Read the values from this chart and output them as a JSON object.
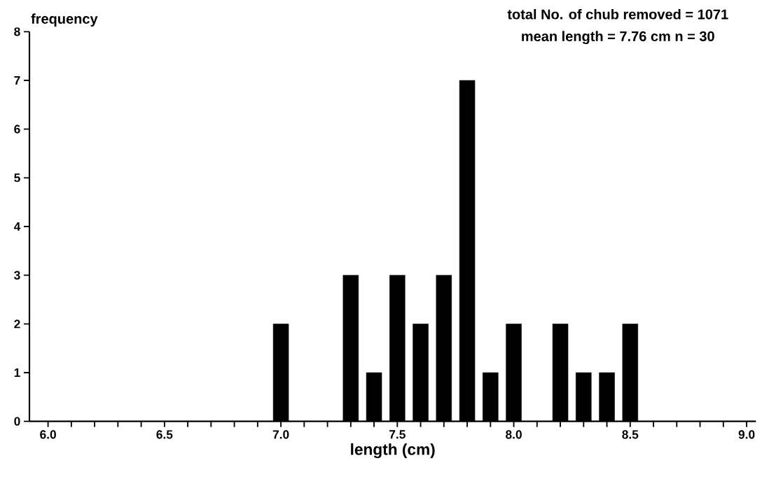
{
  "chart_data": {
    "type": "bar",
    "ylabel": "frequency",
    "xlabel": "length (cm)",
    "annotations": [
      "total No. of chub removed = 1071",
      "mean length = 7.76 cm    n = 30"
    ],
    "x": [
      7.0,
      7.3,
      7.4,
      7.5,
      7.6,
      7.7,
      7.8,
      7.9,
      8.0,
      8.2,
      8.3,
      8.4,
      8.5
    ],
    "values": [
      2,
      3,
      1,
      3,
      2,
      3,
      7,
      1,
      2,
      2,
      1,
      1,
      2
    ],
    "color": "#000000",
    "xlim": [
      5.92,
      9.04
    ],
    "ylim": [
      0,
      8
    ],
    "xticks": [
      {
        "value": 6.0,
        "label": "6.0"
      },
      {
        "value": 6.1,
        "label": null
      },
      {
        "value": 6.2,
        "label": null
      },
      {
        "value": 6.3,
        "label": null
      },
      {
        "value": 6.4,
        "label": null
      },
      {
        "value": 6.5,
        "label": "6.5"
      },
      {
        "value": 6.6,
        "label": null
      },
      {
        "value": 6.7,
        "label": null
      },
      {
        "value": 6.8,
        "label": null
      },
      {
        "value": 6.9,
        "label": null
      },
      {
        "value": 7.0,
        "label": "7.0"
      },
      {
        "value": 7.1,
        "label": null
      },
      {
        "value": 7.2,
        "label": null
      },
      {
        "value": 7.3,
        "label": null
      },
      {
        "value": 7.4,
        "label": null
      },
      {
        "value": 7.5,
        "label": "7.5"
      },
      {
        "value": 7.6,
        "label": null
      },
      {
        "value": 7.7,
        "label": null
      },
      {
        "value": 7.8,
        "label": null
      },
      {
        "value": 7.9,
        "label": null
      },
      {
        "value": 8.0,
        "label": "8.0"
      },
      {
        "value": 8.1,
        "label": null
      },
      {
        "value": 8.2,
        "label": null
      },
      {
        "value": 8.3,
        "label": null
      },
      {
        "value": 8.4,
        "label": null
      },
      {
        "value": 8.5,
        "label": "8.5"
      },
      {
        "value": 8.6,
        "label": null
      },
      {
        "value": 8.7,
        "label": null
      },
      {
        "value": 8.8,
        "label": null
      },
      {
        "value": 8.9,
        "label": null
      },
      {
        "value": 9.0,
        "label": "9.0"
      }
    ],
    "yticks": [
      0,
      1,
      2,
      3,
      4,
      5,
      6,
      7,
      8
    ],
    "grid": false
  }
}
